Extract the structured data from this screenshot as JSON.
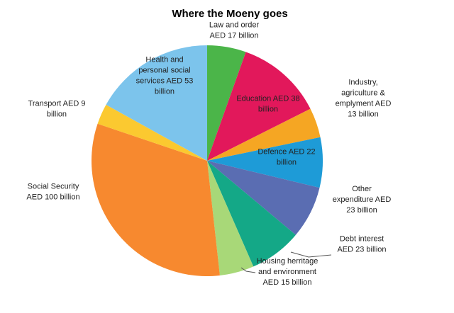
{
  "chart_data": {
    "type": "pie",
    "title": "Where the Moeny goes",
    "unit": "AED billion",
    "slices": [
      {
        "label": "Law and order AED 17 billion",
        "lines": [
          "Law and order",
          "AED 17 billion"
        ],
        "value": 17,
        "color": "#4bb549"
      },
      {
        "label": "Education AED 38 billion",
        "lines": [
          "Education AED 38",
          "billion"
        ],
        "value": 38,
        "color": "#e2185b"
      },
      {
        "label": "Industry, agriculture & emplyment AED 13 billion",
        "lines": [
          "Industry,",
          "agriculture &",
          "emplyment AED",
          "13 billion"
        ],
        "value": 13,
        "color": "#f5a623"
      },
      {
        "label": "Defence AED 22 billion",
        "lines": [
          "Defence AED 22",
          "billion"
        ],
        "value": 22,
        "color": "#1e9bd7"
      },
      {
        "label": "Other expenditure AED 23 billion",
        "lines": [
          "Other",
          "expenditure AED",
          "23 billion"
        ],
        "value": 23,
        "color": "#5a6db2"
      },
      {
        "label": "Debt interest AED 23 billion",
        "lines": [
          "Debt interest",
          "AED 23 billion"
        ],
        "value": 23,
        "color": "#14a887"
      },
      {
        "label": "Housing herritage and environment AED 15 billion",
        "lines": [
          "Housing herritage",
          "and environment",
          "AED 15 billion"
        ],
        "value": 15,
        "color": "#a8d878"
      },
      {
        "label": "Social Security AED 100 billion",
        "lines": [
          "Social Security",
          "AED 100 billion"
        ],
        "value": 100,
        "color": "#f7892f"
      },
      {
        "label": "Transport AED 9 billion",
        "lines": [
          "Transport AED 9",
          "billion"
        ],
        "value": 9,
        "color": "#fbc930"
      },
      {
        "label": "Health and personal social services AED 53 billion",
        "lines": [
          "Health and",
          "personal social",
          "services AED 53",
          "billion"
        ],
        "value": 53,
        "color": "#7cc4ec"
      }
    ]
  }
}
